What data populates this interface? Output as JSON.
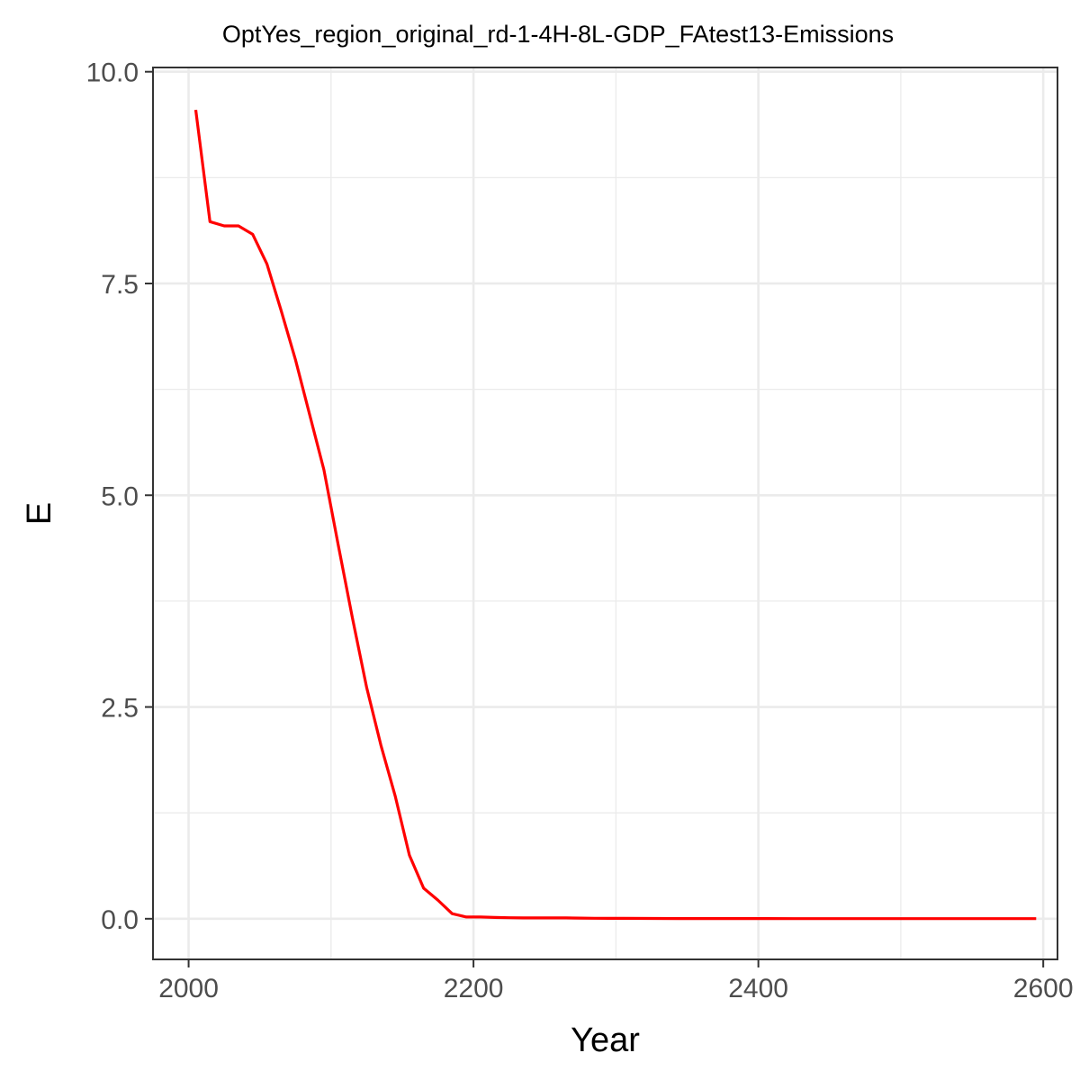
{
  "chart_data": {
    "type": "line",
    "title": "OptYes_region_original_rd-1-4H-8L-GDP_FAtest13-Emissions",
    "xlabel": "Year",
    "ylabel": "E",
    "xlim": [
      1975,
      2610
    ],
    "ylim": [
      -0.48,
      10.05
    ],
    "x_ticks": [
      2000,
      2200,
      2400,
      2600
    ],
    "x_tick_labels": [
      "2000",
      "2200",
      "2400",
      "2600"
    ],
    "x_minor_ticks": [
      2100,
      2300,
      2500
    ],
    "y_ticks": [
      0,
      2.5,
      5,
      7.5,
      10
    ],
    "y_tick_labels": [
      "0.0",
      "2.5",
      "5.0",
      "7.5",
      "10.0"
    ],
    "y_minor_ticks": [
      1.25,
      3.75,
      6.25,
      8.75
    ],
    "grid": true,
    "legend": "none",
    "series": [
      {
        "color": "#ff0000",
        "x": [
          2005,
          2015,
          2025,
          2035,
          2045,
          2055,
          2065,
          2075,
          2085,
          2095,
          2105,
          2115,
          2125,
          2135,
          2145,
          2155,
          2165,
          2175,
          2185,
          2195,
          2205,
          2215,
          2225,
          2235,
          2245,
          2255,
          2265,
          2275,
          2285,
          2295,
          2305,
          2325,
          2345,
          2365,
          2385,
          2405,
          2425,
          2445,
          2465,
          2485,
          2505,
          2525,
          2545,
          2565,
          2585,
          2595
        ],
        "y": [
          9.55,
          8.23,
          8.18,
          8.18,
          8.08,
          7.73,
          7.18,
          6.6,
          5.95,
          5.3,
          4.42,
          3.55,
          2.73,
          2.05,
          1.45,
          0.75,
          0.36,
          0.22,
          0.06,
          0.02,
          0.02,
          0.015,
          0.012,
          0.01,
          0.01,
          0.01,
          0.01,
          0.008,
          0.006,
          0.005,
          0.004,
          0.003,
          0.002,
          0.002,
          0.002,
          0.002,
          0.001,
          0.001,
          0.001,
          0.001,
          0.001,
          0.001,
          0.001,
          0.001,
          0.001,
          0.001
        ]
      }
    ]
  }
}
